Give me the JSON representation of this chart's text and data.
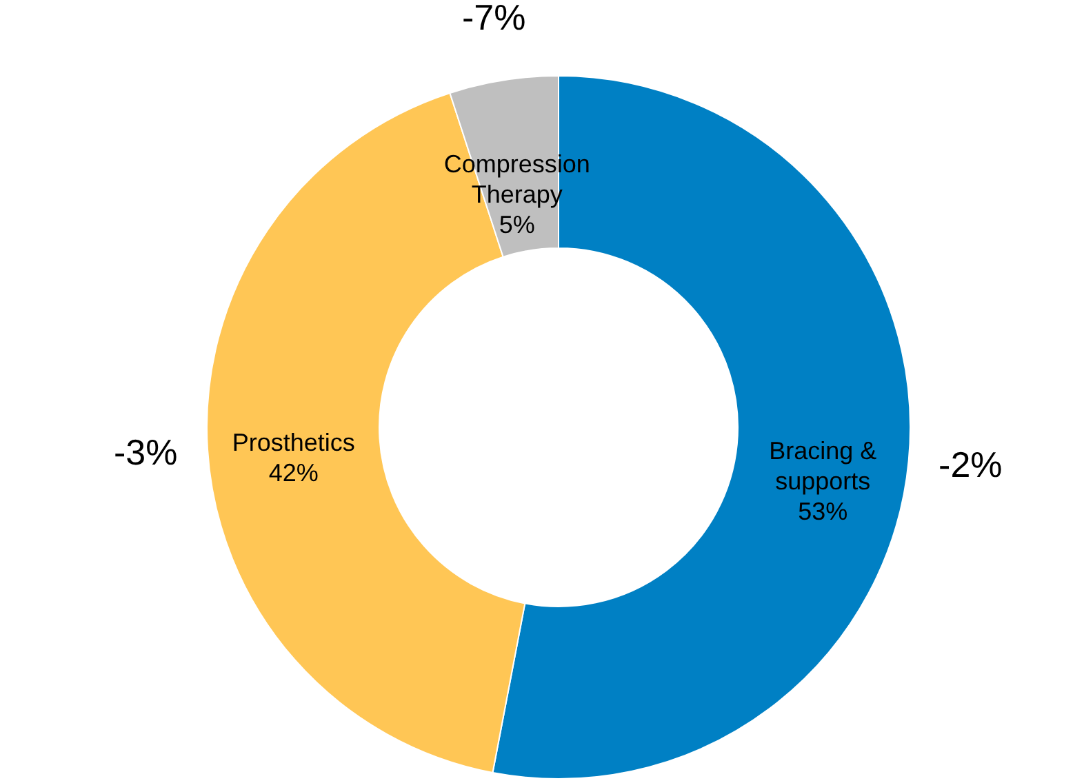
{
  "chart_data": {
    "type": "donut",
    "categories": [
      "Bracing & supports",
      "Prosthetics",
      "Compression Therapy"
    ],
    "values": [
      53,
      42,
      5
    ],
    "colors": [
      "#0080c4",
      "#ffc655",
      "#bfbfbf"
    ],
    "value_labels": [
      "53%",
      "42%",
      "5%"
    ],
    "annotations": [
      "-2%",
      "-3%",
      "-7%"
    ]
  }
}
